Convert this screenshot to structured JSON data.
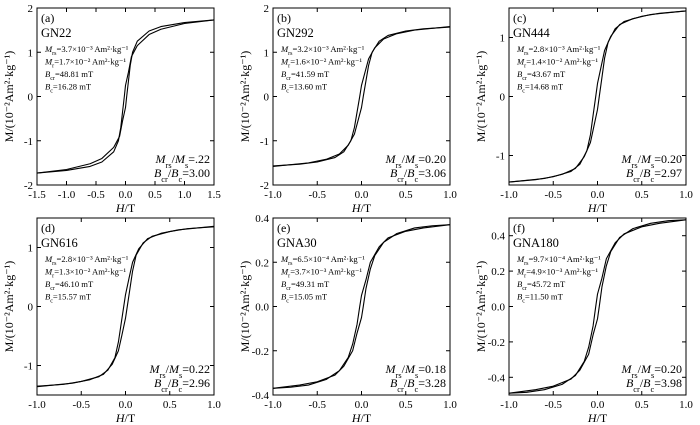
{
  "chart_data": [
    {
      "type": "line",
      "panel_label": "(a)",
      "sample": "GN22",
      "params": [
        "Mrs=3.7×10⁻³ Am²·kg⁻¹",
        "Mr=1.7×10⁻² Am²·kg⁻¹",
        "Bcr=48.81 mT",
        "Bc=16.28 mT"
      ],
      "ratios": [
        "Mrs/Ms=.22",
        "Bcr/Bc=3.00"
      ],
      "xlabel": "H/T",
      "ylabel": "M/(10⁻²Am²·kg⁻¹)",
      "xlim": [
        -1.5,
        1.5
      ],
      "ylim": [
        -2,
        2
      ],
      "xticks": [
        "-1.5",
        "-1.0",
        "-0.5",
        "0.0",
        "0.5",
        "1.0",
        "1.5"
      ],
      "yticks": [
        "-2",
        "-1",
        "0",
        "1",
        "2"
      ],
      "series": [
        {
          "x": [
            -1.5,
            -1.0,
            -0.6,
            -0.4,
            -0.2,
            -0.1,
            -0.05,
            0.0,
            0.02,
            0.05,
            0.08,
            0.12,
            0.2,
            0.4,
            0.6,
            1.0,
            1.5
          ],
          "y": [
            -1.73,
            -1.65,
            -1.52,
            -1.4,
            -1.15,
            -0.9,
            -0.55,
            -0.25,
            0.0,
            0.35,
            0.7,
            1.0,
            1.25,
            1.48,
            1.58,
            1.67,
            1.73
          ]
        },
        {
          "x": [
            1.5,
            1.0,
            0.6,
            0.4,
            0.2,
            0.1,
            0.05,
            0.0,
            -0.02,
            -0.05,
            -0.08,
            -0.12,
            -0.2,
            -0.4,
            -0.6,
            -1.0,
            -1.5
          ],
          "y": [
            1.73,
            1.65,
            1.52,
            1.4,
            1.15,
            0.9,
            0.55,
            0.25,
            0.0,
            -0.35,
            -0.7,
            -1.0,
            -1.25,
            -1.48,
            -1.58,
            -1.67,
            -1.73
          ]
        }
      ]
    },
    {
      "type": "line",
      "panel_label": "(b)",
      "sample": "GN292",
      "params": [
        "Mrs=3.2×10⁻³ Am²·kg⁻¹",
        "Mr=1.6×10⁻² Am²·kg⁻¹",
        "Bcr=41.59 mT",
        "Bc=13.60 mT"
      ],
      "ratios": [
        "Mrs/Ms=0.20",
        "Bcr/Bc=3.06"
      ],
      "xlabel": "H/T",
      "ylabel": "M/(10⁻²Am²·kg⁻¹)",
      "xlim": [
        -1.0,
        1.0
      ],
      "ylim": [
        -2,
        2
      ],
      "xticks": [
        "-1.0",
        "-0.5",
        "0.0",
        "0.5",
        "1.0"
      ],
      "yticks": [
        "-2",
        "-1",
        "0",
        "1",
        "2"
      ],
      "series": [
        {
          "x": [
            -1.0,
            -0.6,
            -0.4,
            -0.25,
            -0.15,
            -0.08,
            -0.04,
            0.0,
            0.02,
            0.05,
            0.08,
            0.12,
            0.2,
            0.3,
            0.5,
            0.7,
            1.0
          ],
          "y": [
            -1.58,
            -1.5,
            -1.42,
            -1.3,
            -1.1,
            -0.85,
            -0.55,
            -0.25,
            0.0,
            0.35,
            0.7,
            1.0,
            1.25,
            1.38,
            1.48,
            1.53,
            1.57
          ]
        },
        {
          "x": [
            1.0,
            0.6,
            0.4,
            0.25,
            0.15,
            0.08,
            0.04,
            0.0,
            -0.02,
            -0.05,
            -0.08,
            -0.12,
            -0.2,
            -0.3,
            -0.5,
            -0.7,
            -1.0
          ],
          "y": [
            1.58,
            1.5,
            1.42,
            1.3,
            1.1,
            0.85,
            0.55,
            0.25,
            0.0,
            -0.35,
            -0.7,
            -1.0,
            -1.25,
            -1.38,
            -1.48,
            -1.53,
            -1.57
          ]
        }
      ]
    },
    {
      "type": "line",
      "panel_label": "(c)",
      "sample": "GN444",
      "params": [
        "Mrs=2.8×10⁻³ Am²·kg⁻¹",
        "Mr=1.4×10⁻² Am²·kg⁻¹",
        "Bcr=43.67 mT",
        "Bc=14.68 mT"
      ],
      "ratios": [
        "Mrs/Ms=0.20",
        "Bcr/Bc=2.97"
      ],
      "xlabel": "H/T",
      "ylabel": "M/(10⁻²Am²·kg⁻¹)",
      "xlim": [
        -1.0,
        1.0
      ],
      "ylim": [
        -1.5,
        1.5
      ],
      "xticks": [
        "-1.0",
        "-0.5",
        "0.0",
        "0.5",
        "1.0"
      ],
      "yticks": [
        "-1",
        "0",
        "1"
      ],
      "series": [
        {
          "x": [
            -1.0,
            -0.6,
            -0.4,
            -0.25,
            -0.15,
            -0.08,
            -0.04,
            0.0,
            0.02,
            0.05,
            0.08,
            0.12,
            0.2,
            0.3,
            0.5,
            0.7,
            1.0
          ],
          "y": [
            -1.45,
            -1.39,
            -1.32,
            -1.22,
            -1.02,
            -0.78,
            -0.5,
            -0.22,
            0.0,
            0.32,
            0.65,
            0.92,
            1.15,
            1.27,
            1.36,
            1.41,
            1.45
          ]
        },
        {
          "x": [
            1.0,
            0.6,
            0.4,
            0.25,
            0.15,
            0.08,
            0.04,
            0.0,
            -0.02,
            -0.05,
            -0.08,
            -0.12,
            -0.2,
            -0.3,
            -0.5,
            -0.7,
            -1.0
          ],
          "y": [
            1.45,
            1.39,
            1.32,
            1.22,
            1.02,
            0.78,
            0.5,
            0.22,
            0.0,
            -0.32,
            -0.65,
            -0.92,
            -1.15,
            -1.27,
            -1.36,
            -1.41,
            -1.45
          ]
        }
      ]
    },
    {
      "type": "line",
      "panel_label": "(d)",
      "sample": "GN616",
      "params": [
        "Mrs=2.8×10⁻³ Am²·kg⁻¹",
        "Mr=1.3×10⁻² Am²·kg⁻¹",
        "Bcr=46.10 mT",
        "Bc=15.57 mT"
      ],
      "ratios": [
        "Mrs/Ms=0.22",
        "Bcr/Bc=2.96"
      ],
      "xlabel": "H/T",
      "ylabel": "M/(10⁻²Am²·kg⁻¹)",
      "xlim": [
        -1.0,
        1.0
      ],
      "ylim": [
        -1.5,
        1.5
      ],
      "xticks": [
        "-1.0",
        "-0.5",
        "0.0",
        "0.5",
        "1.0"
      ],
      "yticks": [
        "-1",
        "0",
        "1"
      ],
      "series": [
        {
          "x": [
            -1.0,
            -0.6,
            -0.4,
            -0.25,
            -0.15,
            -0.08,
            -0.04,
            0.0,
            0.02,
            0.05,
            0.08,
            0.12,
            0.2,
            0.3,
            0.5,
            0.7,
            1.0
          ],
          "y": [
            -1.36,
            -1.3,
            -1.24,
            -1.15,
            -0.98,
            -0.75,
            -0.48,
            -0.2,
            0.0,
            0.3,
            0.6,
            0.87,
            1.08,
            1.19,
            1.27,
            1.32,
            1.35
          ]
        },
        {
          "x": [
            1.0,
            0.6,
            0.4,
            0.25,
            0.15,
            0.08,
            0.04,
            0.0,
            -0.02,
            -0.05,
            -0.08,
            -0.12,
            -0.2,
            -0.3,
            -0.5,
            -0.7,
            -1.0
          ],
          "y": [
            1.36,
            1.3,
            1.24,
            1.15,
            0.98,
            0.75,
            0.48,
            0.2,
            0.0,
            -0.3,
            -0.6,
            -0.87,
            -1.08,
            -1.19,
            -1.27,
            -1.32,
            -1.35
          ]
        }
      ]
    },
    {
      "type": "line",
      "panel_label": "(e)",
      "sample": "GNA30",
      "params": [
        "Mrs=6.5×10⁻⁴ Am²·kg⁻¹",
        "Mr=3.7×10⁻³ Am²·kg⁻¹",
        "Bcr=49.31 mT",
        "Bc=15.05 mT"
      ],
      "ratios": [
        "Mrs/Ms=0.18",
        "Bcr/Bc=3.28"
      ],
      "xlabel": "H/T",
      "ylabel": "M/(10⁻²Am²·kg⁻¹)",
      "xlim": [
        -1.0,
        1.0
      ],
      "ylim": [
        -0.4,
        0.4
      ],
      "xticks": [
        "-1.0",
        "-0.5",
        "0.0",
        "0.5",
        "1.0"
      ],
      "yticks": [
        "-0.4",
        "-0.2",
        "0.0",
        "0.2",
        "0.4"
      ],
      "series": [
        {
          "x": [
            -1.0,
            -0.7,
            -0.5,
            -0.3,
            -0.2,
            -0.1,
            -0.05,
            0.0,
            0.02,
            0.05,
            0.1,
            0.15,
            0.25,
            0.4,
            0.6,
            0.8,
            1.0
          ],
          "y": [
            -0.37,
            -0.355,
            -0.34,
            -0.31,
            -0.27,
            -0.2,
            -0.12,
            -0.05,
            0.0,
            0.08,
            0.17,
            0.23,
            0.29,
            0.33,
            0.355,
            0.365,
            0.37
          ]
        },
        {
          "x": [
            1.0,
            0.7,
            0.5,
            0.3,
            0.2,
            0.1,
            0.05,
            0.0,
            -0.02,
            -0.05,
            -0.1,
            -0.15,
            -0.25,
            -0.4,
            -0.6,
            -0.8,
            -1.0
          ],
          "y": [
            0.37,
            0.355,
            0.34,
            0.31,
            0.27,
            0.2,
            0.12,
            0.05,
            0.0,
            -0.08,
            -0.17,
            -0.23,
            -0.29,
            -0.33,
            -0.355,
            -0.365,
            -0.37
          ]
        }
      ]
    },
    {
      "type": "line",
      "panel_label": "(f)",
      "sample": "GNA180",
      "params": [
        "Mrs=9.7×10⁻⁴ Am²·kg⁻¹",
        "Mr=4.9×10⁻³ Am²·kg⁻¹",
        "Bcr=45.72 mT",
        "Bc=11.50 mT"
      ],
      "ratios": [
        "Mrs/Ms=0.20",
        "Bcr/Bc=3.98"
      ],
      "xlabel": "H/T",
      "ylabel": "M/(10⁻²Am²·kg⁻¹)",
      "xlim": [
        -1.0,
        1.0
      ],
      "ylim": [
        -0.5,
        0.5
      ],
      "xticks": [
        "-1.0",
        "-0.5",
        "0.0",
        "0.5",
        "1.0"
      ],
      "yticks": [
        "-0.4",
        "-0.2",
        "0.0",
        "0.2",
        "0.4"
      ],
      "series": [
        {
          "x": [
            -1.0,
            -0.7,
            -0.5,
            -0.3,
            -0.2,
            -0.1,
            -0.05,
            0.0,
            0.02,
            0.05,
            0.1,
            0.15,
            0.25,
            0.4,
            0.6,
            0.8,
            1.0
          ],
          "y": [
            -0.49,
            -0.47,
            -0.45,
            -0.41,
            -0.36,
            -0.27,
            -0.16,
            -0.07,
            0.0,
            0.11,
            0.23,
            0.31,
            0.39,
            0.44,
            0.47,
            0.485,
            0.49
          ]
        },
        {
          "x": [
            1.0,
            0.7,
            0.5,
            0.3,
            0.2,
            0.1,
            0.05,
            0.0,
            -0.02,
            -0.05,
            -0.1,
            -0.15,
            -0.25,
            -0.4,
            -0.6,
            -0.8,
            -1.0
          ],
          "y": [
            0.49,
            0.47,
            0.45,
            0.41,
            0.36,
            0.27,
            0.16,
            0.07,
            0.0,
            -0.11,
            -0.23,
            -0.31,
            -0.39,
            -0.44,
            -0.47,
            -0.485,
            -0.49
          ]
        }
      ]
    }
  ]
}
